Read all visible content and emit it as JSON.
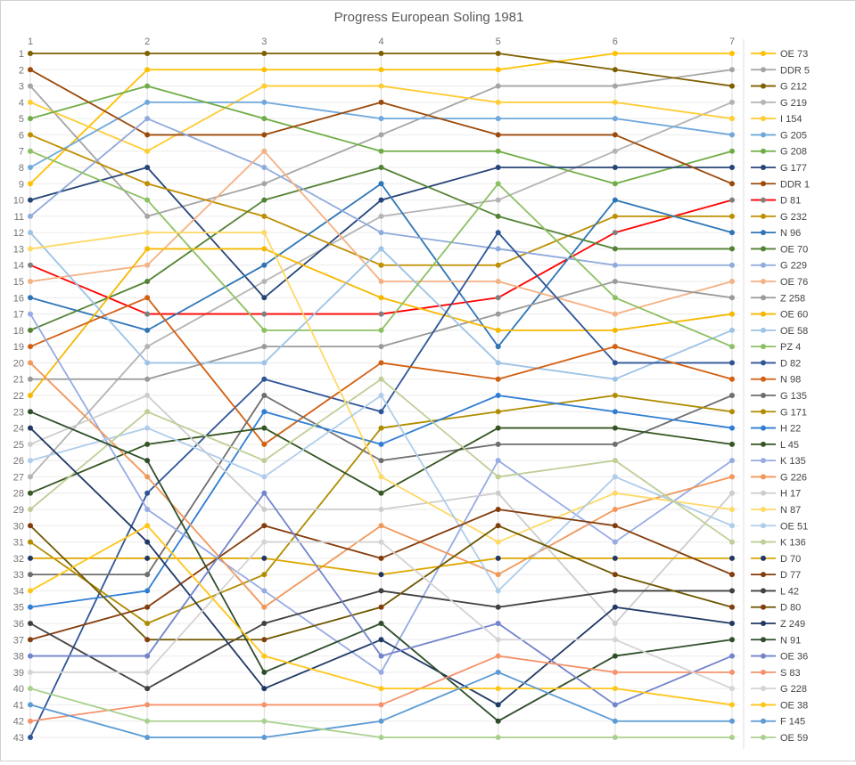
{
  "chart_data": {
    "type": "line",
    "title": "Progress European Soling 1981",
    "xlabel": "",
    "ylabel": "",
    "x": [
      1,
      2,
      3,
      4,
      5,
      6,
      7
    ],
    "x_axis_position": "top",
    "y_axis": {
      "min": 1,
      "max": 43,
      "inverted": true,
      "meaning": "rank/place"
    },
    "grid": true,
    "legend_position": "right",
    "axis_tick_color": "#757575",
    "title_color": "#595959",
    "gridline_color_h": "#ebebeb",
    "gridline_color_v": "#dcdcdc",
    "series": [
      {
        "name": "OE 73",
        "color": "#FFC000",
        "marker_color": "#FFC000",
        "values": [
          9,
          2,
          2,
          2,
          2,
          1,
          1
        ]
      },
      {
        "name": "DDR 5",
        "color": "#A5A5A5",
        "marker_color": "#A5A5A5",
        "values": [
          3,
          11,
          9,
          6,
          3,
          3,
          2
        ]
      },
      {
        "name": "G 212",
        "color": "#7F6000",
        "marker_color": "#7F6000",
        "values": [
          1,
          1,
          1,
          1,
          1,
          2,
          3
        ]
      },
      {
        "name": "G 219",
        "color": "#B4B4B4",
        "marker_color": "#B4B4B4",
        "values": [
          27,
          19,
          15,
          11,
          10,
          7,
          4
        ]
      },
      {
        "name": "I 154",
        "color": "#FFCC33",
        "marker_color": "#FFCC33",
        "values": [
          4,
          7,
          3,
          3,
          4,
          4,
          5
        ]
      },
      {
        "name": "G 205",
        "color": "#6FA8DC",
        "marker_color": "#6FA8DC",
        "values": [
          8,
          4,
          4,
          5,
          5,
          5,
          6
        ]
      },
      {
        "name": "G 208",
        "color": "#70AD47",
        "marker_color": "#70AD47",
        "values": [
          5,
          3,
          5,
          7,
          7,
          9,
          7
        ]
      },
      {
        "name": "G 177",
        "color": "#264478",
        "marker_color": "#264478",
        "values": [
          10,
          8,
          16,
          10,
          8,
          8,
          8
        ]
      },
      {
        "name": "DDR 1",
        "color": "#9C4A0B",
        "marker_color": "#9C4A0B",
        "values": [
          2,
          6,
          6,
          4,
          6,
          6,
          9
        ]
      },
      {
        "name": "D 81",
        "color": "#FF0000",
        "marker_color": "#7F7F7F",
        "values": [
          14,
          17,
          17,
          17,
          16,
          12,
          10
        ]
      },
      {
        "name": "G 232",
        "color": "#BF8F00",
        "marker_color": "#BF8F00",
        "values": [
          6,
          9,
          11,
          14,
          14,
          11,
          11
        ]
      },
      {
        "name": "N 96",
        "color": "#2E75B6",
        "marker_color": "#2E75B6",
        "values": [
          16,
          18,
          14,
          9,
          19,
          10,
          12
        ]
      },
      {
        "name": "OE 70",
        "color": "#548235",
        "marker_color": "#548235",
        "values": [
          18,
          15,
          10,
          8,
          11,
          13,
          13
        ]
      },
      {
        "name": "G 229",
        "color": "#8FAADC",
        "marker_color": "#8FAADC",
        "values": [
          11,
          5,
          8,
          12,
          13,
          14,
          14
        ]
      },
      {
        "name": "OE 76",
        "color": "#F4B183",
        "marker_color": "#F4B183",
        "values": [
          15,
          14,
          7,
          15,
          15,
          17,
          15
        ]
      },
      {
        "name": "Z 258",
        "color": "#9A9A9A",
        "marker_color": "#9A9A9A",
        "values": [
          21,
          21,
          19,
          19,
          17,
          15,
          16
        ]
      },
      {
        "name": "OE 60",
        "color": "#F5B800",
        "marker_color": "#F5B800",
        "values": [
          22,
          13,
          13,
          16,
          18,
          18,
          17
        ]
      },
      {
        "name": "OE 58",
        "color": "#9DC3E6",
        "marker_color": "#9DC3E6",
        "values": [
          12,
          20,
          20,
          13,
          20,
          21,
          18
        ]
      },
      {
        "name": "PZ 4",
        "color": "#8DC063",
        "marker_color": "#8DC063",
        "values": [
          7,
          10,
          18,
          18,
          9,
          16,
          19
        ]
      },
      {
        "name": "D 82",
        "color": "#2F5597",
        "marker_color": "#2F5597",
        "values": [
          43,
          28,
          21,
          23,
          12,
          20,
          20
        ]
      },
      {
        "name": "N 98",
        "color": "#D26012",
        "marker_color": "#D26012",
        "values": [
          19,
          16,
          25,
          20,
          21,
          19,
          21
        ]
      },
      {
        "name": "G 135",
        "color": "#6E6E6E",
        "marker_color": "#6E6E6E",
        "values": [
          33,
          33,
          22,
          26,
          25,
          25,
          22
        ]
      },
      {
        "name": "G 171",
        "color": "#B08C00",
        "marker_color": "#B08C00",
        "values": [
          31,
          36,
          33,
          24,
          23,
          22,
          23
        ]
      },
      {
        "name": "H 22",
        "color": "#2F7ED3",
        "marker_color": "#2F7ED3",
        "values": [
          35,
          34,
          23,
          25,
          22,
          23,
          24
        ]
      },
      {
        "name": "L 45",
        "color": "#375623",
        "marker_color": "#375623",
        "values": [
          28,
          25,
          24,
          28,
          24,
          24,
          25
        ]
      },
      {
        "name": "K 135",
        "color": "#96ABE3",
        "marker_color": "#96ABE3",
        "values": [
          17,
          29,
          34,
          39,
          26,
          31,
          26
        ]
      },
      {
        "name": "G 226",
        "color": "#F1975A",
        "marker_color": "#F1975A",
        "values": [
          20,
          27,
          35,
          30,
          33,
          29,
          27
        ]
      },
      {
        "name": "H 17",
        "color": "#CDCDCD",
        "marker_color": "#CDCDCD",
        "values": [
          25,
          22,
          29,
          29,
          28,
          36,
          28
        ]
      },
      {
        "name": "N 87",
        "color": "#FFD966",
        "marker_color": "#FFD966",
        "values": [
          13,
          12,
          12,
          27,
          31,
          28,
          29
        ]
      },
      {
        "name": "OE 51",
        "color": "#AFCDEB",
        "marker_color": "#AFCDEB",
        "values": [
          26,
          24,
          27,
          22,
          34,
          27,
          30
        ]
      },
      {
        "name": "K 136",
        "color": "#BFCE97",
        "marker_color": "#BFCE97",
        "values": [
          29,
          23,
          26,
          21,
          27,
          26,
          31
        ]
      },
      {
        "name": "D 70",
        "color": "#DCA700",
        "marker_color": "#1F3864",
        "values": [
          32,
          32,
          32,
          33,
          32,
          32,
          32
        ]
      },
      {
        "name": "D 77",
        "color": "#843C0C",
        "marker_color": "#843C0C",
        "values": [
          37,
          35,
          30,
          32,
          29,
          30,
          33
        ]
      },
      {
        "name": "L 42",
        "color": "#404040",
        "marker_color": "#404040",
        "values": [
          36,
          40,
          36,
          34,
          35,
          34,
          34
        ]
      },
      {
        "name": "D 80",
        "color": "#6E5600",
        "marker_color": "#843C0C",
        "values": [
          30,
          37,
          37,
          35,
          30,
          33,
          35
        ]
      },
      {
        "name": "Z 249",
        "color": "#203864",
        "marker_color": "#203864",
        "values": [
          24,
          31,
          40,
          37,
          41,
          35,
          36
        ]
      },
      {
        "name": "N 91",
        "color": "#2E4E2A",
        "marker_color": "#2E4E2A",
        "values": [
          23,
          26,
          39,
          36,
          42,
          38,
          37
        ]
      },
      {
        "name": "OE 36",
        "color": "#7284CC",
        "marker_color": "#7284CC",
        "values": [
          38,
          38,
          28,
          38,
          36,
          41,
          38
        ]
      },
      {
        "name": "S 83",
        "color": "#F5926B",
        "marker_color": "#F5926B",
        "values": [
          42,
          41,
          41,
          41,
          38,
          39,
          39
        ]
      },
      {
        "name": "G 228",
        "color": "#D5D3D3",
        "marker_color": "#D5D3D3",
        "values": [
          39,
          39,
          31,
          31,
          37,
          37,
          40
        ]
      },
      {
        "name": "OE 38",
        "color": "#FFC61A",
        "marker_color": "#FFC61A",
        "values": [
          34,
          30,
          38,
          40,
          40,
          40,
          41
        ]
      },
      {
        "name": "F 145",
        "color": "#5B9BD5",
        "marker_color": "#5B9BD5",
        "values": [
          41,
          43,
          43,
          42,
          39,
          42,
          42
        ]
      },
      {
        "name": "OE 59",
        "color": "#A9D18E",
        "marker_color": "#A9D18E",
        "values": [
          40,
          42,
          42,
          43,
          43,
          43,
          43
        ]
      }
    ]
  }
}
